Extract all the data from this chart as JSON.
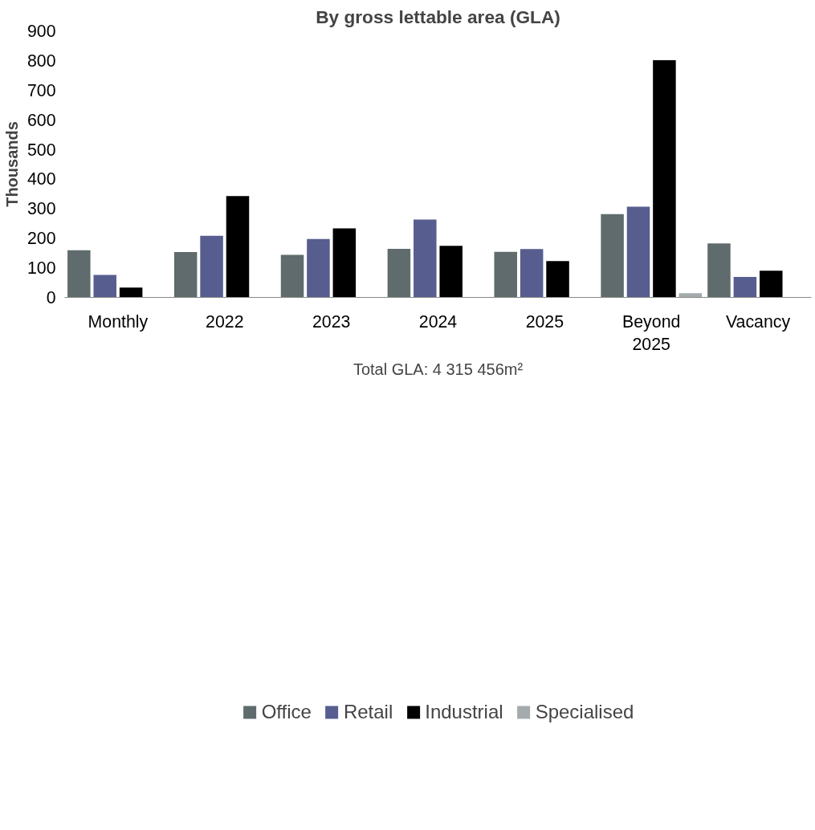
{
  "chart_data": {
    "type": "bar",
    "title": "By gross lettable area (GLA)",
    "ylabel": "Thousands",
    "xlabel": "Total GLA: 4 315 456m²",
    "categories": [
      "Monthly",
      "2022",
      "2023",
      "2024",
      "2025",
      "Beyond 2025",
      "Vacancy"
    ],
    "series": [
      {
        "name": "Office",
        "color": "#5f6b6d",
        "values": [
          159,
          153,
          144,
          164,
          154,
          281,
          182
        ]
      },
      {
        "name": "Retail",
        "color": "#575d8f",
        "values": [
          76,
          208,
          197,
          263,
          163,
          306,
          69
        ]
      },
      {
        "name": "Industrial",
        "color": "#000000",
        "values": [
          33,
          342,
          233,
          174,
          123,
          801,
          90
        ]
      },
      {
        "name": "Specialised",
        "color": "#a3abad",
        "values": [
          null,
          null,
          null,
          null,
          null,
          14,
          null
        ]
      }
    ],
    "ylim": [
      0,
      900
    ],
    "yticks": [
      0,
      100,
      200,
      300,
      400,
      500,
      600,
      700,
      800,
      900
    ],
    "grid": false,
    "legend": "bottom"
  }
}
